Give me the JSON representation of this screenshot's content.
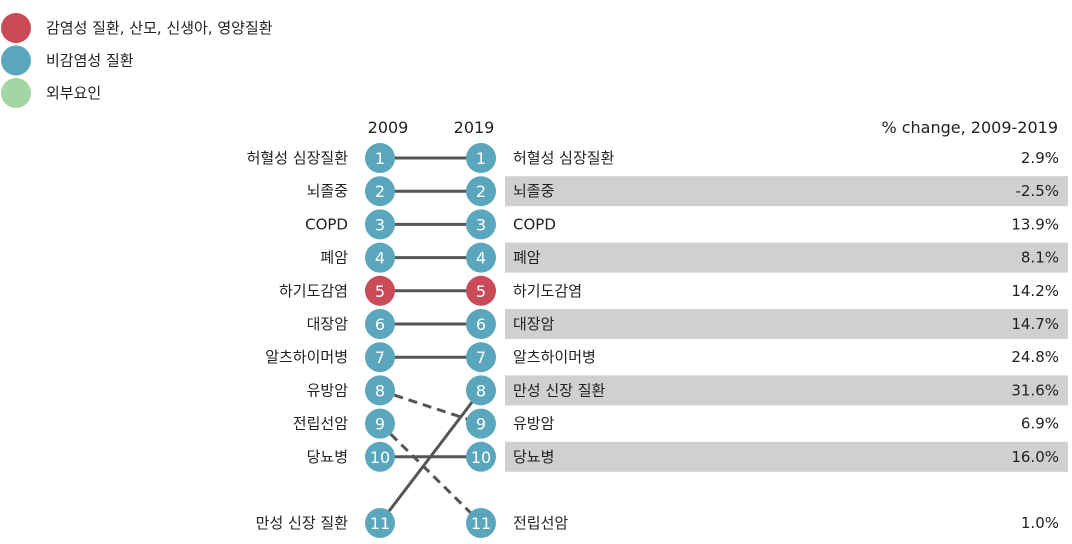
{
  "chart_data": {
    "type": "slope",
    "legend": [
      {
        "label": "감염성 질환, 산모, 신생아, 영양질환",
        "color": "#c84b57"
      },
      {
        "label": "비감염성 질환",
        "color": "#5aa7bd"
      },
      {
        "label": "외부요인",
        "color": "#a3d6a2"
      }
    ],
    "x": [
      "2009",
      "2019"
    ],
    "change_header": "% change, 2009-2019",
    "rows_2009": [
      {
        "rank": "1",
        "name": "허혈성 심장질환",
        "category": 1
      },
      {
        "rank": "2",
        "name": "뇌졸중",
        "category": 1
      },
      {
        "rank": "3",
        "name": "COPD",
        "category": 1
      },
      {
        "rank": "4",
        "name": "폐암",
        "category": 1
      },
      {
        "rank": "5",
        "name": "하기도감염",
        "category": 0
      },
      {
        "rank": "6",
        "name": "대장암",
        "category": 1
      },
      {
        "rank": "7",
        "name": "알츠하이머병",
        "category": 1
      },
      {
        "rank": "8",
        "name": "유방암",
        "category": 1
      },
      {
        "rank": "9",
        "name": "전립선암",
        "category": 1
      },
      {
        "rank": "10",
        "name": "당뇨병",
        "category": 1
      },
      {
        "rank": "11",
        "name": "만성 신장 질환",
        "category": 1
      }
    ],
    "rows_2019": [
      {
        "rank": "1",
        "name": "허혈성 심장질환",
        "change": "2.9%",
        "category": 1
      },
      {
        "rank": "2",
        "name": "뇌졸중",
        "change": "-2.5%",
        "category": 1
      },
      {
        "rank": "3",
        "name": "COPD",
        "change": "13.9%",
        "category": 1
      },
      {
        "rank": "4",
        "name": "폐암",
        "change": "8.1%",
        "category": 1
      },
      {
        "rank": "5",
        "name": "하기도감염",
        "change": "14.2%",
        "category": 0
      },
      {
        "rank": "6",
        "name": "대장암",
        "change": "14.7%",
        "category": 1
      },
      {
        "rank": "7",
        "name": "알츠하이머병",
        "change": "24.8%",
        "category": 1
      },
      {
        "rank": "8",
        "name": "만성 신장 질환",
        "change": "31.6%",
        "category": 1
      },
      {
        "rank": "9",
        "name": "유방암",
        "change": "6.9%",
        "category": 1
      },
      {
        "rank": "10",
        "name": "당뇨병",
        "change": "16.0%",
        "category": 1
      },
      {
        "rank": "11",
        "name": "전립선암",
        "change": "1.0%",
        "category": 1
      }
    ],
    "shaded_rows_2019": [
      "2",
      "4",
      "6",
      "8",
      "10"
    ],
    "links": [
      {
        "from": "1",
        "to": "1",
        "style": "solid"
      },
      {
        "from": "2",
        "to": "2",
        "style": "solid"
      },
      {
        "from": "3",
        "to": "3",
        "style": "solid"
      },
      {
        "from": "4",
        "to": "4",
        "style": "solid"
      },
      {
        "from": "5",
        "to": "5",
        "style": "solid"
      },
      {
        "from": "6",
        "to": "6",
        "style": "solid"
      },
      {
        "from": "7",
        "to": "7",
        "style": "solid"
      },
      {
        "from": "8",
        "to": "9",
        "style": "dashed"
      },
      {
        "from": "9",
        "to": "11",
        "style": "dashed"
      },
      {
        "from": "10",
        "to": "10",
        "style": "solid"
      },
      {
        "from": "11",
        "to": "8",
        "style": "solid"
      }
    ],
    "colors": {
      "link": "#555555",
      "shade": "#d0d0d2",
      "text": "#222222",
      "node_text": "#ffffff"
    }
  }
}
